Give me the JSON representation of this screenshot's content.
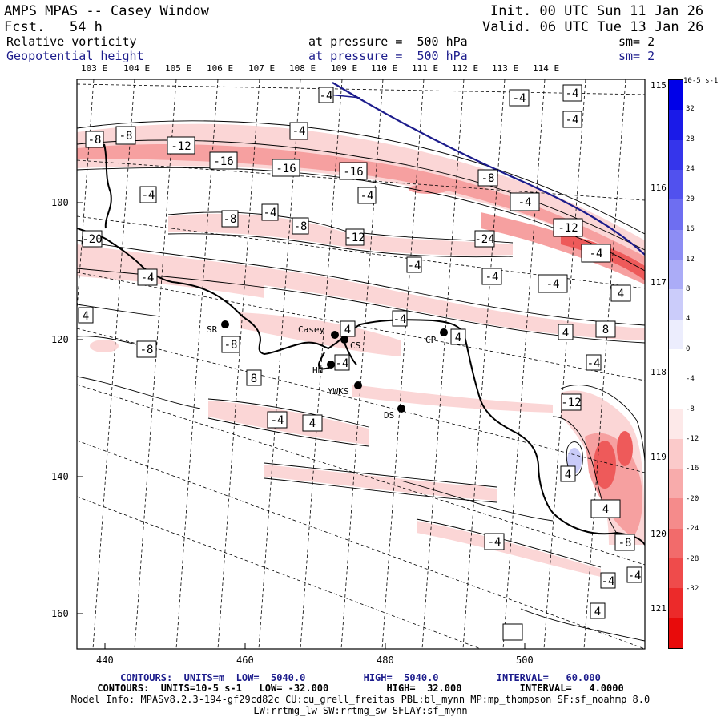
{
  "header": {
    "title": "AMPS MPAS -- Casey Window",
    "forecast": "Fcst.   54 h",
    "init": "Init. 00 UTC Sun 11 Jan 26",
    "valid": "Valid. 06 UTC Tue 13 Jan 26",
    "field1_name": "Relative vorticity",
    "field1_level": "at pressure =  500 hPa",
    "field1_sm": "sm= 2",
    "field2_name": "Geopotential height",
    "field2_level": "at pressure =  500 hPa",
    "field2_sm": "sm= 2"
  },
  "axes": {
    "x_ticks": [
      "440",
      "460",
      "480",
      "500"
    ],
    "y_ticks": [
      "100",
      "120",
      "140",
      "160"
    ],
    "lon_top": [
      "103 E",
      "104 E",
      "105 E",
      "106 E",
      "107 E",
      "108 E",
      "109 E",
      "110 E",
      "111 E",
      "112 E",
      "113 E",
      "114 E"
    ],
    "lon_right": [
      "115 E",
      "116 E",
      "117 E",
      "118 E",
      "119 E",
      "120 E",
      "121 E"
    ]
  },
  "stations": [
    {
      "id": "SR"
    },
    {
      "id": "Casey"
    },
    {
      "id": "CS"
    },
    {
      "id": "HN"
    },
    {
      "id": "YWKS"
    },
    {
      "id": "DS"
    },
    {
      "id": "CP"
    }
  ],
  "contour_labels": [
    "-8",
    "-8",
    "-12",
    "-16",
    "-16",
    "-16",
    "-4",
    "-4",
    "-4",
    "-4",
    "-4",
    "-8",
    "-4",
    "-4",
    "-4",
    "-8",
    "-8",
    "-12",
    "-20",
    "-24",
    "-4",
    "-12",
    "-4",
    "-4",
    "-4",
    "-4",
    "-4",
    "4",
    "4",
    "-4",
    "8",
    "4",
    "4",
    "4",
    "-8",
    "-8",
    "-4",
    "-4",
    "8",
    "-12",
    "-4",
    "4",
    "4",
    "4",
    "-4",
    "-8",
    "-4",
    "-4",
    "4"
  ],
  "colorbar": {
    "unit": "10-5 s-1",
    "labels": [
      "32",
      "28",
      "24",
      "20",
      "16",
      "12",
      "8",
      "4",
      "0",
      "-4",
      "-8",
      "-12",
      "-16",
      "-20",
      "-24",
      "-28",
      "-32"
    ],
    "colors": [
      "#0000e8",
      "#1a1ae8",
      "#3535eb",
      "#5151ee",
      "#6e6ef1",
      "#8d8df4",
      "#abacf7",
      "#cbccfa",
      "#ecedfd",
      "#ffffff",
      "#ffffff",
      "#fde9e9",
      "#fbcaca",
      "#f8abab",
      "#f58b8b",
      "#f26b6b",
      "#ef4b4b",
      "#ec2a2a",
      "#e80b0b"
    ]
  },
  "footer": {
    "line1": "CONTOURS:  UNITS=m  LOW=  5040.0          HIGH=  5040.0          INTERVAL=   60.000",
    "line2": "CONTOURS:  UNITS=10-5 s-1   LOW= -32.000          HIGH=  32.000          INTERVAL=   4.0000",
    "line3": "Model Info: MPASv8.2.3-194-gf29cd82c CU:cu_grell_freitas PBL:bl_mynn MP:mp_thompson SF:sf_noahmp 8.0",
    "line4": "LW:rrtmg_lw SW:rrtmg_sw SFLAY:sf_mynn"
  },
  "colors": {
    "height_contour": "#1c1c8c",
    "coast": "#000000"
  }
}
